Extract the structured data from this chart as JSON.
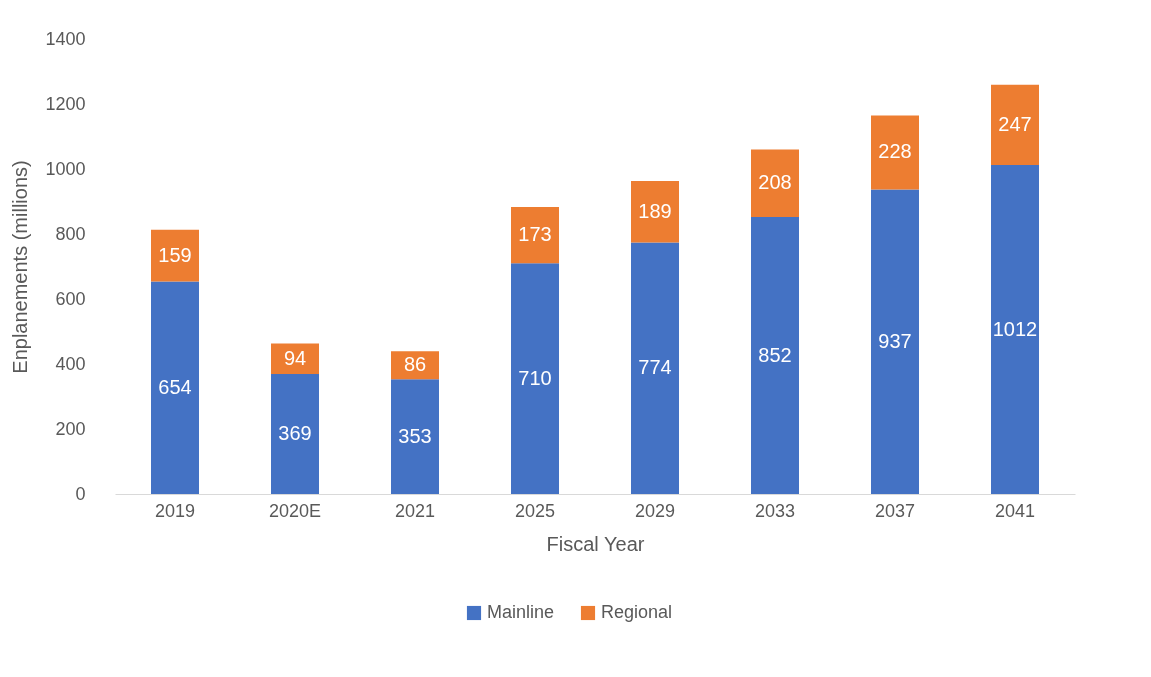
{
  "chart_data": {
    "type": "bar",
    "stacked": true,
    "xlabel": "Fiscal Year",
    "ylabel": "Enplanements (millions)",
    "categories": [
      "2019",
      "2020E",
      "2021",
      "2025",
      "2029",
      "2033",
      "2037",
      "2041"
    ],
    "series": [
      {
        "name": "Mainline",
        "color": "#4472c4",
        "values": [
          654,
          369,
          353,
          710,
          774,
          852,
          937,
          1012
        ]
      },
      {
        "name": "Regional",
        "color": "#ed7d31",
        "values": [
          159,
          94,
          86,
          173,
          189,
          208,
          228,
          247
        ]
      }
    ],
    "ylim": [
      0,
      1400
    ],
    "yticks": [
      0,
      200,
      400,
      600,
      800,
      1000,
      1200,
      1400
    ],
    "grid": false,
    "legend": "bottom",
    "data_labels": true
  }
}
